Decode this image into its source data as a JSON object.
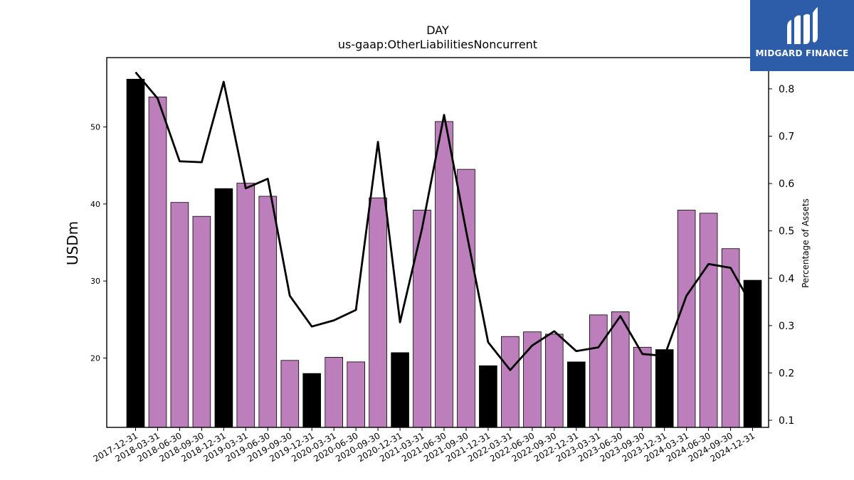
{
  "chart_data": {
    "type": "bar",
    "title": "DAY",
    "subtitle": "us-gaap:OtherLiabilitiesNoncurrent",
    "ylabel": "USDm",
    "y2label": "Percentage of Assets",
    "ylim": [
      11,
      59
    ],
    "y2lim": [
      0.085,
      0.866
    ],
    "yticks": [
      20,
      30,
      40,
      50
    ],
    "y2ticks": [
      0.1,
      0.2,
      0.3,
      0.4,
      0.5,
      0.6,
      0.7,
      0.8
    ],
    "grid": false,
    "categories": [
      "2017-12-31",
      "2018-03-31",
      "2018-06-30",
      "2018-09-30",
      "2018-12-31",
      "2019-03-31",
      "2019-06-30",
      "2019-09-30",
      "2019-12-31",
      "2020-03-31",
      "2020-06-30",
      "2020-09-30",
      "2020-12-31",
      "2021-03-31",
      "2021-06-30",
      "2021-09-30",
      "2021-12-31",
      "2022-03-31",
      "2022-06-30",
      "2022-09-30",
      "2022-12-31",
      "2023-03-31",
      "2023-06-30",
      "2023-09-30",
      "2023-12-31",
      "2024-03-31",
      "2024-06-30",
      "2024-09-30",
      "2024-12-31"
    ],
    "series": [
      {
        "kind": "bar",
        "values": [
          56.2,
          53.9,
          40.2,
          38.4,
          42.0,
          42.7,
          41.0,
          19.7,
          18.0,
          20.1,
          19.5,
          40.8,
          20.7,
          39.2,
          50.7,
          44.5,
          19.0,
          22.8,
          23.4,
          23.1,
          19.5,
          25.6,
          26.0,
          21.4,
          21.1,
          39.2,
          38.8,
          34.2,
          30.1
        ],
        "colors": [
          "#000000",
          "#bc7fbc",
          "#bc7fbc",
          "#bc7fbc",
          "#000000",
          "#bc7fbc",
          "#bc7fbc",
          "#bc7fbc",
          "#000000",
          "#bc7fbc",
          "#bc7fbc",
          "#bc7fbc",
          "#000000",
          "#bc7fbc",
          "#bc7fbc",
          "#bc7fbc",
          "#000000",
          "#bc7fbc",
          "#bc7fbc",
          "#bc7fbc",
          "#000000",
          "#bc7fbc",
          "#bc7fbc",
          "#bc7fbc",
          "#000000",
          "#bc7fbc",
          "#bc7fbc",
          "#bc7fbc",
          "#000000"
        ]
      },
      {
        "kind": "line",
        "axis": "right",
        "color": "#000000",
        "values": [
          0.835,
          0.78,
          0.647,
          0.645,
          0.815,
          0.59,
          0.61,
          0.363,
          0.298,
          0.311,
          0.333,
          0.688,
          0.307,
          0.505,
          0.745,
          0.5,
          0.265,
          0.206,
          0.258,
          0.288,
          0.246,
          0.254,
          0.32,
          0.24,
          0.236,
          0.363,
          0.43,
          0.422,
          0.34
        ]
      }
    ]
  },
  "logo": {
    "text": "MIDGARD FINANCE",
    "background": "#2d5ca8"
  }
}
